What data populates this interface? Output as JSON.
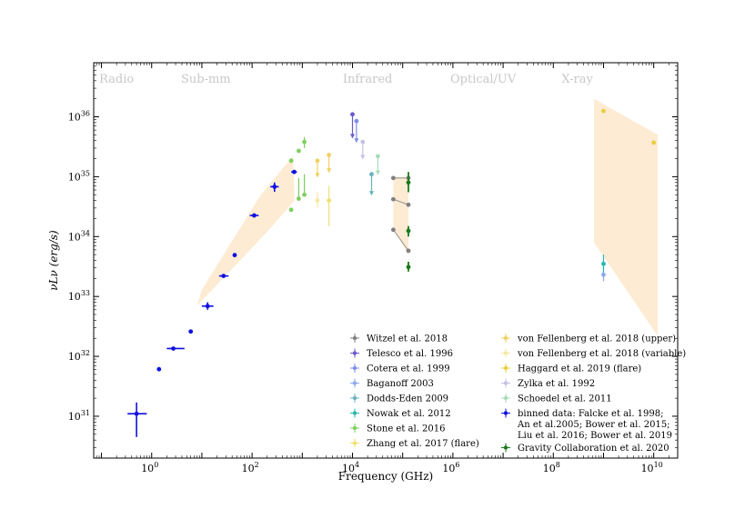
{
  "chart_data": {
    "type": "scatter",
    "title": "",
    "xlabel": "Frequency (GHz)",
    "ylabel": "νLν (erg/s)",
    "x_scale": "log",
    "y_scale": "log",
    "xlim": [
      0.07,
      30000000000
    ],
    "ylim": [
      2e+30,
      8e+36
    ],
    "grid": false,
    "legend_placement": "lower-right",
    "x_ticks": [
      {
        "value": 1,
        "base": "10",
        "exp": "0"
      },
      {
        "value": 100,
        "base": "10",
        "exp": "2"
      },
      {
        "value": 10000,
        "base": "10",
        "exp": "4"
      },
      {
        "value": 1000000,
        "base": "10",
        "exp": "6"
      },
      {
        "value": 100000000,
        "base": "10",
        "exp": "8"
      },
      {
        "value": 10000000000,
        "base": "10",
        "exp": "10"
      }
    ],
    "y_ticks": [
      {
        "value": 1e+31,
        "base": "10",
        "exp": "31"
      },
      {
        "value": 1e+32,
        "base": "10",
        "exp": "32"
      },
      {
        "value": 1e+33,
        "base": "10",
        "exp": "33"
      },
      {
        "value": 1e+34,
        "base": "10",
        "exp": "34"
      },
      {
        "value": 1e+35,
        "base": "10",
        "exp": "35"
      },
      {
        "value": 1e+36,
        "base": "10",
        "exp": "36"
      }
    ],
    "band_labels": [
      {
        "text": "Radio",
        "x": 0.2
      },
      {
        "text": "Sub-mm",
        "x": 12
      },
      {
        "text": "Infrared",
        "x": 20000
      },
      {
        "text": "Optical/UV",
        "x": 4000000
      },
      {
        "text": "X-ray",
        "x": 300000000
      }
    ],
    "shaded_regions": [
      {
        "name": "sub-mm",
        "color": "#fdebd3",
        "polygon": [
          [
            8,
            7e+32
          ],
          [
            200,
            1.2e+34
          ],
          [
            700,
            4e+34
          ],
          [
            650,
            2.2e+35
          ],
          [
            150,
            5e+34
          ],
          [
            10,
            1.3e+33
          ]
        ]
      },
      {
        "name": "infrared",
        "color": "#fdebd3",
        "polygon": [
          [
            65000,
            1e+35
          ],
          [
            130000,
            1e+35
          ],
          [
            130000,
            5e+33
          ],
          [
            65000,
            1.4e+34
          ]
        ]
      },
      {
        "name": "x-ray",
        "color": "#fdebd3",
        "polygon": [
          [
            650000000,
            2e+36
          ],
          [
            12000000000,
            5e+35
          ],
          [
            12000000000,
            2.2e+32
          ],
          [
            650000000,
            8e+33
          ]
        ]
      }
    ],
    "series": [
      {
        "name": "Witzel et al. 2018",
        "color": "#808080",
        "marker": "dot",
        "points": [
          {
            "x": 65000,
            "y": 9.5e+34
          },
          {
            "x": 130000,
            "y": 9.5e+34
          },
          {
            "x": 65000,
            "y": 4.2e+34
          },
          {
            "x": 130000,
            "y": 3.4e+34
          },
          {
            "x": 65000,
            "y": 1.3e+34
          },
          {
            "x": 130000,
            "y": 5.8e+33
          }
        ],
        "connectors": [
          [
            [
              65000,
              9.5e+34
            ],
            [
              130000,
              9.5e+34
            ]
          ],
          [
            [
              65000,
              4.2e+34
            ],
            [
              130000,
              3.4e+34
            ]
          ],
          [
            [
              65000,
              1.3e+34
            ],
            [
              130000,
              5.8e+33
            ]
          ]
        ]
      },
      {
        "name": "Telesco et al. 1996",
        "color": "#6a5acd",
        "marker": "dot",
        "points": [
          {
            "x": 10000,
            "y": 1.1e+36,
            "ylo": 4.5e+35,
            "uplimit": true
          }
        ]
      },
      {
        "name": "Cotera et al. 1999",
        "color": "#7f8fe8",
        "marker": "dot",
        "points": [
          {
            "x": 12000,
            "y": 8.5e+35,
            "ylo": 3.8e+35,
            "uplimit": true
          }
        ]
      },
      {
        "name": "Baganoff 2003",
        "color": "#8fa8f0",
        "marker": "dot",
        "points": [
          {
            "x": 1000000000,
            "y": 2.3e+33,
            "ylo": 1.8e+33,
            "yhi": 3e+33
          }
        ]
      },
      {
        "name": "Dodds-Eden 2009",
        "color": "#6ab0c0",
        "marker": "dot",
        "points": [
          {
            "x": 24000,
            "y": 1.1e+35,
            "ylo": 5e+34,
            "uplimit": true
          }
        ]
      },
      {
        "name": "Nowak et al. 2012",
        "color": "#2ab7b0",
        "marker": "dot",
        "points": [
          {
            "x": 1000000000,
            "y": 3.5e+33,
            "ylo": 2.5e+33,
            "yhi": 5e+33
          }
        ]
      },
      {
        "name": "Stone et al. 2016",
        "color": "#7fcf5f",
        "marker": "dot",
        "points": [
          {
            "x": 600,
            "y": 1.85e+35
          },
          {
            "x": 600,
            "y": 2.8e+34
          },
          {
            "x": 850,
            "y": 2.7e+35
          },
          {
            "x": 850,
            "y": 4.3e+34,
            "ylo": 4.3e+34,
            "yhi": 9.5e+34
          },
          {
            "x": 1100,
            "y": 3.8e+35,
            "ylo": 3e+35,
            "yhi": 4.6e+35
          },
          {
            "x": 1100,
            "y": 5e+34,
            "ylo": 5e+34,
            "yhi": 1.1e+35
          }
        ]
      },
      {
        "name": "Zhang et al. 2017 (flare)",
        "color": "#f0e070",
        "marker": "dot",
        "points": [
          {
            "x": 3400,
            "y": 4e+34,
            "ylo": 1.5e+34,
            "yhi": 7e+34
          }
        ]
      },
      {
        "name": "von Fellenberg et al. 2018 (upper)",
        "color": "#f0d060",
        "marker": "dot",
        "points": [
          {
            "x": 2000,
            "y": 1.85e+35,
            "ylo": 1e+35,
            "uplimit": true
          },
          {
            "x": 3400,
            "y": 2.3e+35,
            "ylo": 1.2e+35,
            "uplimit": true
          }
        ]
      },
      {
        "name": "von Fellenberg et al. 2018 (variable)",
        "color": "#f5e8a0",
        "marker": "dot",
        "points": [
          {
            "x": 2000,
            "y": 4e+34,
            "ylo": 3e+34,
            "yhi": 5.5e+34
          }
        ]
      },
      {
        "name": "Haggard et al. 2019 (flare)",
        "color": "#e8d040",
        "marker": "dot",
        "points": [
          {
            "x": 1000000000,
            "y": 1.25e+36
          },
          {
            "x": 10000000000,
            "y": 3.7e+35
          }
        ]
      },
      {
        "name": "Zylka et al. 1992",
        "color": "#c8c0e8",
        "marker": "dot",
        "points": [
          {
            "x": 16000,
            "y": 3.8e+35,
            "ylo": 2e+35,
            "uplimit": true
          }
        ]
      },
      {
        "name": "Schoedel et al. 2011",
        "color": "#a8dcb8",
        "marker": "dot",
        "points": [
          {
            "x": 32000,
            "y": 2.2e+35,
            "ylo": 1.1e+35,
            "uplimit": true
          }
        ]
      },
      {
        "name": "binned data: Falcke et al. 1998; An et al.2005; Bower et al. 2015; Liu et al. 2016; Bower et al. 2019",
        "legend_lines": [
          "binned data: Falcke et al. 1998;",
          "An et al.2005; Bower et al. 2015;",
          "Liu et al. 2016; Bower et al. 2019"
        ],
        "color": "#1010e0",
        "marker": "dot",
        "points": [
          {
            "x": 0.5,
            "y": 1.1e+31,
            "xlo": 0.33,
            "xhi": 0.8,
            "ylo": 4.5e+30,
            "yhi": 1.7e+31
          },
          {
            "x": 1.4,
            "y": 6.1e+31
          },
          {
            "x": 2.7,
            "y": 1.35e+32,
            "xlo": 2,
            "xhi": 4.5
          },
          {
            "x": 6,
            "y": 2.6e+32
          },
          {
            "x": 13,
            "y": 6.9e+32,
            "xlo": 10,
            "xhi": 17,
            "ylo": 6e+32,
            "yhi": 8e+32
          },
          {
            "x": 27,
            "y": 2.2e+33,
            "xlo": 22,
            "xhi": 34
          },
          {
            "x": 45,
            "y": 4.9e+33
          },
          {
            "x": 110,
            "y": 2.25e+34,
            "xlo": 90,
            "xhi": 135
          },
          {
            "x": 280,
            "y": 6.8e+34,
            "xlo": 230,
            "xhi": 340,
            "ylo": 5.6e+34,
            "yhi": 8e+34
          },
          {
            "x": 690,
            "y": 1.2e+35,
            "xlo": 600,
            "xhi": 780
          }
        ]
      },
      {
        "name": "Gravity Collaboration et al. 2020",
        "color": "#1a7a1a",
        "marker": "dot",
        "points": [
          {
            "x": 130000,
            "y": 8e+34,
            "ylo": 5.5e+34,
            "yhi": 1.2e+35
          },
          {
            "x": 130000,
            "y": 1.25e+34,
            "ylo": 1e+34,
            "yhi": 1.5e+34
          },
          {
            "x": 130000,
            "y": 3.1e+33,
            "ylo": 2.6e+33,
            "yhi": 3.8e+33
          }
        ]
      }
    ]
  }
}
